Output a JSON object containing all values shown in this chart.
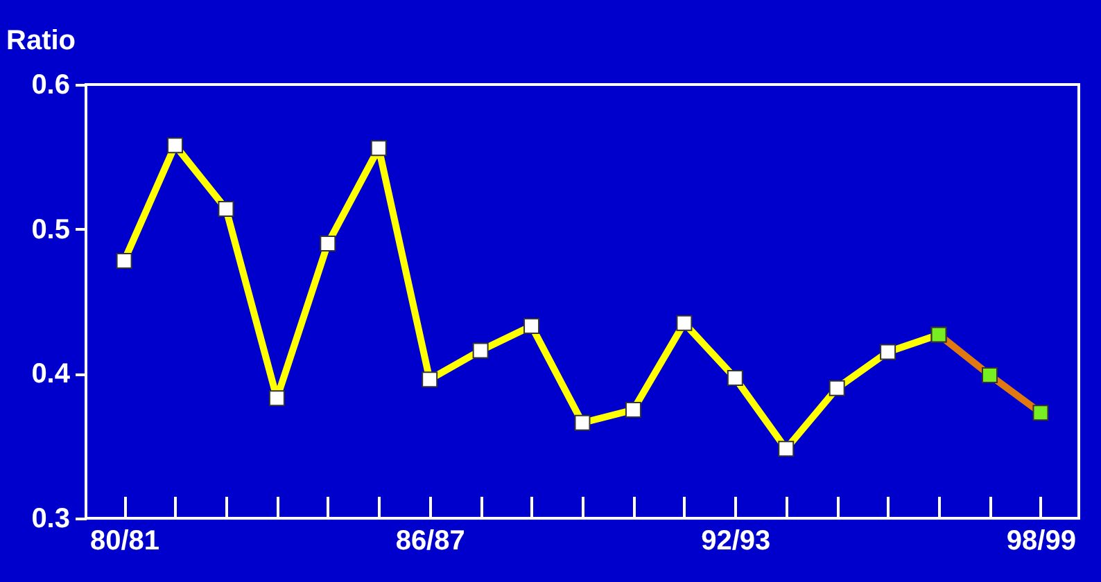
{
  "chart_data": {
    "type": "line",
    "ylabel": "Ratio",
    "categories": [
      "80/81",
      null,
      null,
      null,
      null,
      null,
      "86/87",
      null,
      null,
      null,
      null,
      null,
      "92/93",
      null,
      null,
      null,
      null,
      null,
      "98/99"
    ],
    "series": [
      {
        "color": "#ffff00",
        "values": [
          0.478,
          0.558,
          0.514,
          0.383,
          0.49,
          0.556,
          0.396,
          0.416,
          0.433,
          0.366,
          0.375,
          0.435,
          0.397,
          0.348,
          0.39,
          0.415,
          0.427,
          null,
          null
        ]
      },
      {
        "color": "#e07a10",
        "values": [
          null,
          null,
          null,
          null,
          null,
          null,
          null,
          null,
          null,
          null,
          null,
          null,
          null,
          null,
          null,
          null,
          0.427,
          0.399,
          0.373
        ]
      }
    ],
    "ylim": [
      0.3,
      0.6
    ],
    "yticks": [
      0.3,
      0.4,
      0.5,
      0.6
    ],
    "marker": "square",
    "grid": false,
    "legend": false
  }
}
